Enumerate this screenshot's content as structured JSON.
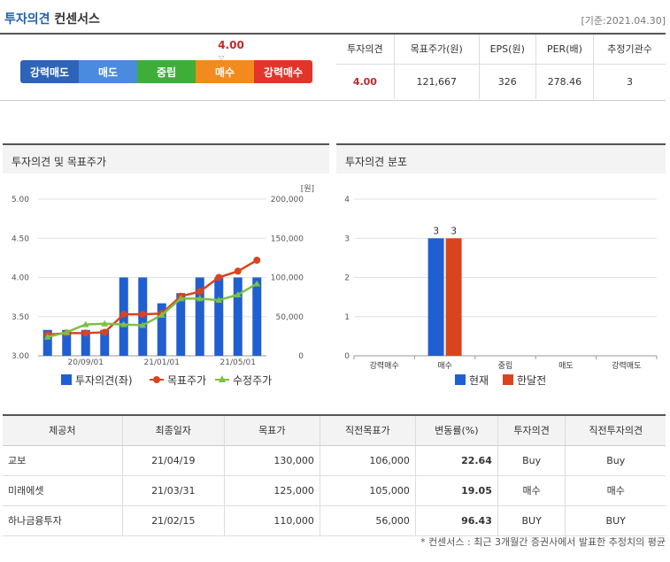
{
  "header": {
    "title_part1": "투자의견",
    "title_part2": "컨센서스",
    "base_date": "[기준:2021.04.30]"
  },
  "opinion_bar": {
    "score": "4.00",
    "segments": [
      {
        "label": "강력매도",
        "color": "#2d64b8"
      },
      {
        "label": "매도",
        "color": "#4a8be0"
      },
      {
        "label": "중립",
        "color": "#3fae39"
      },
      {
        "label": "매수",
        "color": "#f28a1e"
      },
      {
        "label": "강력매수",
        "color": "#e3342a"
      }
    ]
  },
  "summary": {
    "headers": [
      "투자의견",
      "목표주가(원)",
      "EPS(원)",
      "PER(배)",
      "추정기관수"
    ],
    "values": [
      "4.00",
      "121,667",
      "326",
      "278.46",
      "3"
    ]
  },
  "panels": {
    "left_title": "투자의견 및 목표주가",
    "right_title": "투자의견 분포"
  },
  "chart_data": [
    {
      "type": "bar+line",
      "title": "투자의견 및 목표주가",
      "y_unit_right": "[원]",
      "y_left_ticks": [
        "5.00",
        "4.50",
        "4.00",
        "3.50",
        "3.00"
      ],
      "y_right_ticks": [
        "200,000",
        "150,000",
        "100,000",
        "50,000",
        "0"
      ],
      "ylim_left": [
        3.0,
        5.0
      ],
      "ylim_right": [
        0,
        200000
      ],
      "x_ticks": [
        "20/09/01",
        "21/01/01",
        "21/05/01"
      ],
      "x_tick_positions": [
        3,
        7,
        11
      ],
      "series": [
        {
          "name": "투자의견(좌)",
          "kind": "bar",
          "color": "#1f5fd1",
          "values": [
            3.33,
            3.33,
            3.33,
            3.33,
            4.0,
            4.0,
            3.67,
            3.8,
            4.0,
            4.0,
            4.0,
            4.0
          ]
        },
        {
          "name": "목표주가",
          "kind": "line",
          "color": "#d9441f",
          "values": [
            27000,
            29000,
            29000,
            30000,
            53000,
            53000,
            54000,
            76000,
            82000,
            100000,
            108000,
            122000
          ]
        },
        {
          "name": "수정주가",
          "kind": "line",
          "color": "#7ac142",
          "values": [
            24000,
            30000,
            40000,
            41000,
            40000,
            39000,
            52000,
            73000,
            73000,
            71000,
            78000,
            92000
          ]
        }
      ]
    },
    {
      "type": "bar",
      "title": "투자의견 분포",
      "categories": [
        "강력매수",
        "매수",
        "중립",
        "매도",
        "강력매도"
      ],
      "y_ticks": [
        "4",
        "3",
        "2",
        "1",
        "0"
      ],
      "ylim": [
        0,
        4
      ],
      "series": [
        {
          "name": "현재",
          "color": "#1f5fd1",
          "values": [
            0,
            3,
            0,
            0,
            0
          ],
          "labels": [
            "",
            "3",
            "",
            "",
            ""
          ]
        },
        {
          "name": "한달전",
          "color": "#d9441f",
          "values": [
            0,
            3,
            0,
            0,
            0
          ],
          "labels": [
            "",
            "3",
            "",
            "",
            ""
          ]
        }
      ]
    }
  ],
  "detail_table": {
    "headers": [
      "제공처",
      "최종일자",
      "목표가",
      "직전목표가",
      "변동률(%)",
      "투자의견",
      "직전투자의견"
    ],
    "rows": [
      [
        "교보",
        "21/04/19",
        "130,000",
        "106,000",
        "22.64",
        "Buy",
        "Buy"
      ],
      [
        "미래에셋",
        "21/03/31",
        "125,000",
        "105,000",
        "19.05",
        "매수",
        "매수"
      ],
      [
        "하나금융투자",
        "21/02/15",
        "110,000",
        "56,000",
        "96.43",
        "BUY",
        "BUY"
      ]
    ]
  },
  "footnote": "* 컨센서스 : 최근 3개월간 증권사에서 발표한 추정치의 평균"
}
